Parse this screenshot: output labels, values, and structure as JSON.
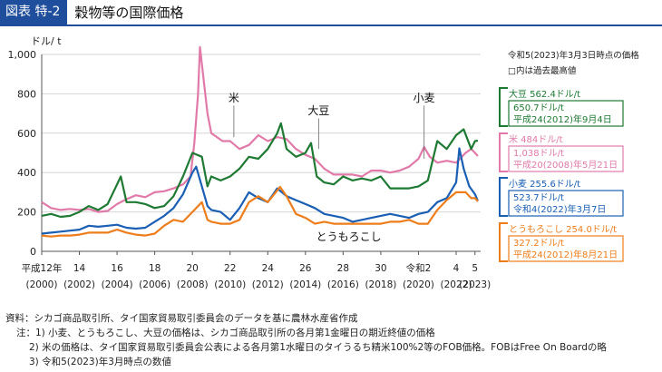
{
  "header": {
    "tag": "図表 特-2",
    "title": "穀物等の国際価格"
  },
  "colors": {
    "wheat": "#1a5fb4",
    "soybean": "#1e7a33",
    "rice": "#e17aa8",
    "corn": "#ee7d1b",
    "accent": "#1f4e9c"
  },
  "chart_data": {
    "type": "line",
    "ylabel": "ドル/ t",
    "ylim": [
      0,
      1000
    ],
    "yticks": [
      "0",
      "200",
      "400",
      "600",
      "800",
      "1,000"
    ],
    "xlim": [
      2000,
      2023.3
    ],
    "xticks": [
      {
        "x": 2000,
        "top": "平成12年",
        "bottom": "(2000)"
      },
      {
        "x": 2002,
        "top": "14",
        "bottom": "(2002)"
      },
      {
        "x": 2004,
        "top": "16",
        "bottom": "(2004)"
      },
      {
        "x": 2006,
        "top": "18",
        "bottom": "(2006)"
      },
      {
        "x": 2008,
        "top": "20",
        "bottom": "(2008)"
      },
      {
        "x": 2010,
        "top": "22",
        "bottom": "(2010)"
      },
      {
        "x": 2012,
        "top": "24",
        "bottom": "(2012)"
      },
      {
        "x": 2014,
        "top": "26",
        "bottom": "(2014)"
      },
      {
        "x": 2016,
        "top": "28",
        "bottom": "(2016)"
      },
      {
        "x": 2018,
        "top": "30",
        "bottom": "(2018)"
      },
      {
        "x": 2020,
        "top": "令和2",
        "bottom": "(2020)"
      },
      {
        "x": 2022,
        "top": "4",
        "bottom": "(2022)"
      },
      {
        "x": 2023,
        "top": "5",
        "bottom": "(2023)"
      }
    ],
    "series": [
      {
        "key": "rice",
        "name": "米",
        "x": [
          2000,
          2000.5,
          2001,
          2001.5,
          2002,
          2002.5,
          2003,
          2003.5,
          2004,
          2004.5,
          2005,
          2005.5,
          2006,
          2006.5,
          2007,
          2007.5,
          2007.9,
          2008.1,
          2008.3,
          2008.4,
          2008.6,
          2008.8,
          2009,
          2009.3,
          2009.6,
          2010,
          2010.5,
          2011,
          2011.5,
          2012,
          2012.5,
          2013,
          2013.5,
          2014,
          2014.5,
          2015,
          2015.5,
          2016,
          2016.5,
          2017,
          2017.5,
          2018,
          2018.5,
          2019,
          2019.5,
          2020,
          2020.3,
          2020.6,
          2021,
          2021.5,
          2022,
          2022.5,
          2022.8,
          2023,
          2023.15
        ],
        "values": [
          250,
          220,
          210,
          215,
          210,
          215,
          200,
          205,
          240,
          265,
          285,
          275,
          300,
          305,
          320,
          340,
          380,
          550,
          800,
          1038,
          870,
          700,
          600,
          580,
          560,
          560,
          520,
          540,
          590,
          560,
          580,
          570,
          520,
          490,
          470,
          420,
          390,
          390,
          390,
          380,
          410,
          410,
          400,
          410,
          430,
          470,
          530,
          480,
          450,
          460,
          450,
          500,
          520,
          500,
          484
        ]
      },
      {
        "key": "wheat",
        "name": "小麦",
        "x": [
          2000,
          2000.5,
          2001,
          2001.5,
          2002,
          2002.5,
          2003,
          2003.5,
          2004,
          2004.5,
          2005,
          2005.5,
          2006,
          2006.5,
          2007,
          2007.5,
          2008,
          2008.2,
          2008.5,
          2008.8,
          2009,
          2009.5,
          2010,
          2010.5,
          2011,
          2011.5,
          2012,
          2012.5,
          2013,
          2013.5,
          2014,
          2014.5,
          2015,
          2015.5,
          2016,
          2016.5,
          2017,
          2017.5,
          2018,
          2018.5,
          2019,
          2019.5,
          2020,
          2020.5,
          2021,
          2021.5,
          2022,
          2022.17,
          2022.4,
          2022.7,
          2023,
          2023.15
        ],
        "values": [
          90,
          95,
          100,
          105,
          110,
          130,
          125,
          130,
          135,
          120,
          115,
          120,
          150,
          180,
          220,
          290,
          400,
          430,
          330,
          230,
          210,
          200,
          160,
          220,
          300,
          270,
          250,
          320,
          280,
          260,
          240,
          220,
          190,
          180,
          170,
          150,
          160,
          170,
          180,
          190,
          180,
          170,
          190,
          200,
          250,
          270,
          350,
          523,
          420,
          330,
          290,
          256
        ]
      },
      {
        "key": "corn",
        "name": "とうもろこし",
        "x": [
          2000,
          2000.5,
          2001,
          2001.5,
          2002,
          2002.5,
          2003,
          2003.5,
          2004,
          2004.5,
          2005,
          2005.5,
          2006,
          2006.5,
          2007,
          2007.5,
          2008,
          2008.5,
          2008.8,
          2009,
          2009.5,
          2010,
          2010.5,
          2011,
          2011.5,
          2012,
          2012.65,
          2013,
          2013.5,
          2014,
          2014.5,
          2015,
          2015.5,
          2016,
          2016.5,
          2017,
          2017.5,
          2018,
          2018.5,
          2019,
          2019.5,
          2020,
          2020.5,
          2021,
          2021.5,
          2022,
          2022.5,
          2022.8,
          2023,
          2023.15
        ],
        "values": [
          80,
          75,
          80,
          80,
          85,
          95,
          95,
          95,
          110,
          95,
          85,
          80,
          90,
          130,
          160,
          150,
          200,
          250,
          160,
          150,
          140,
          140,
          160,
          250,
          280,
          250,
          327,
          280,
          190,
          170,
          140,
          150,
          140,
          140,
          140,
          140,
          140,
          140,
          150,
          150,
          160,
          140,
          140,
          210,
          260,
          300,
          300,
          270,
          270,
          254
        ]
      },
      {
        "key": "soybean",
        "name": "大豆",
        "x": [
          2000,
          2000.5,
          2001,
          2001.5,
          2002,
          2002.5,
          2003,
          2003.5,
          2004,
          2004.2,
          2004.5,
          2005,
          2005.5,
          2006,
          2006.5,
          2007,
          2007.5,
          2008,
          2008.5,
          2008.8,
          2009,
          2009.5,
          2010,
          2010.5,
          2011,
          2011.5,
          2012,
          2012.5,
          2012.7,
          2013,
          2013.5,
          2014,
          2014.3,
          2014.6,
          2015,
          2015.5,
          2016,
          2016.5,
          2017,
          2017.5,
          2018,
          2018.5,
          2019,
          2019.5,
          2020,
          2020.5,
          2021,
          2021.5,
          2022,
          2022.4,
          2022.8,
          2023,
          2023.15
        ],
        "values": [
          180,
          190,
          175,
          180,
          200,
          230,
          210,
          240,
          340,
          380,
          250,
          250,
          240,
          220,
          230,
          280,
          380,
          500,
          480,
          330,
          380,
          360,
          380,
          420,
          480,
          470,
          520,
          600,
          650,
          520,
          480,
          500,
          550,
          380,
          350,
          340,
          380,
          360,
          370,
          360,
          380,
          320,
          320,
          320,
          330,
          360,
          560,
          520,
          590,
          620,
          520,
          560,
          562
        ]
      }
    ],
    "annotations": [
      {
        "label": "米",
        "x": 2010.2,
        "y": 760
      },
      {
        "label": "大豆",
        "x": 2014.7,
        "y": 695
      },
      {
        "label": "小麦",
        "x": 2020.3,
        "y": 760
      },
      {
        "label": "とうもろこし",
        "x": 2016.3,
        "y": 55
      }
    ]
  },
  "legend": {
    "date_line": "令和5(2023)年3月3日時点の価格",
    "box_note": "□内は過去最高値",
    "items": [
      {
        "key": "soybean",
        "current": "大豆 562.4ドル/t",
        "high": "650.7ドル/t",
        "date": "平成24(2012)年9月4日"
      },
      {
        "key": "rice",
        "current": "米 484ドル/t",
        "high": "1,038ドル/t",
        "date": "平成20(2008)年5月21日"
      },
      {
        "key": "wheat",
        "current": "小麦 255.6ドル/t",
        "high": "523.7ドル/t",
        "date": "令和4(2022)年3月7日"
      },
      {
        "key": "corn",
        "current": "とうもろこし 254.0ドル/t",
        "high": "327.2ドル/t",
        "date": "平成24(2012)年8月21日"
      }
    ]
  },
  "notes": {
    "source": "資料：シカゴ商品取引所、タイ国家貿易取引委員会のデータを基に農林水産省作成",
    "note1": "注：1) 小麦、とうもろこし、大豆の価格は、シカゴ商品取引所の各月第1金曜日の期近終値の価格",
    "note2": "2) 米の価格は、タイ国家貿易取引委員会公表による各月第1水曜日のタイうるち精米100%2等のFOB価格。FOBはFree On Boardの略",
    "note3": "3) 令和5(2023)年3月時点の数値"
  }
}
